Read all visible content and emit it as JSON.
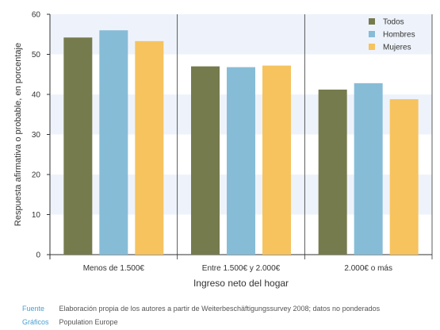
{
  "chart_data": {
    "type": "bar",
    "categories": [
      "Menos de 1.500€",
      "Entre 1.500€ y 2.000€",
      "2.000€ o más"
    ],
    "series": [
      {
        "name": "Todos",
        "values": [
          54.2,
          47.0,
          41.2
        ],
        "color": "#767b4e"
      },
      {
        "name": "Hombres",
        "values": [
          56.0,
          46.8,
          42.8
        ],
        "color": "#87bcd6"
      },
      {
        "name": "Mujeres",
        "values": [
          53.3,
          47.2,
          38.8
        ],
        "color": "#f6c35f"
      }
    ],
    "xlabel": "Ingreso neto del hogar",
    "ylabel": "Respuesta afirmativa o probable, en porcentaje",
    "ylim": [
      0,
      60
    ],
    "yticks": [
      0,
      10,
      20,
      30,
      40,
      50,
      60
    ],
    "legend_position": "top-right",
    "band_color": "#eef3fb"
  },
  "footer": {
    "source_label": "Fuente",
    "source_text": "Elaboración propia de los autores a partir de Weiterbeschäftigungssurvey 2008; datos no ponderados",
    "graphics_label": "Gráficos",
    "graphics_text": "Population Europe"
  }
}
